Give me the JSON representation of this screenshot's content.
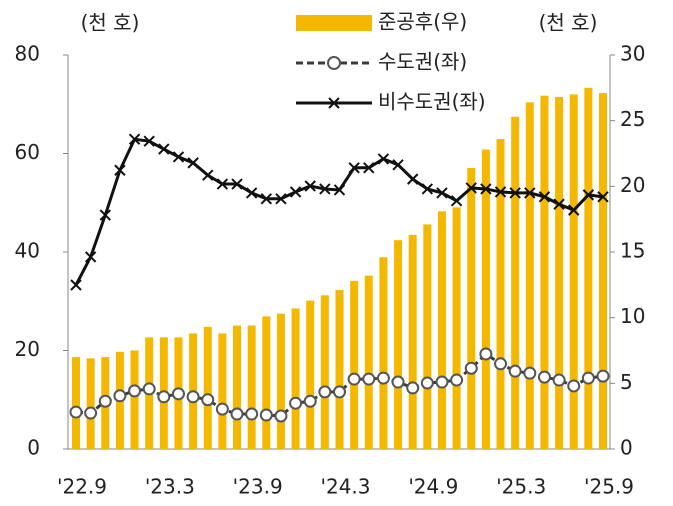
{
  "chart_data": {
    "type": "bar-line",
    "left_unit": "(천 호)",
    "right_unit": "(천 호)",
    "categories": [
      "'22.9",
      null,
      null,
      null,
      null,
      null,
      "'23.3",
      null,
      null,
      null,
      null,
      null,
      "'23.9",
      null,
      null,
      null,
      null,
      null,
      "'24.3",
      null,
      null,
      null,
      null,
      null,
      "'24.9",
      null,
      null,
      null,
      null,
      null,
      "'25.3",
      null,
      null,
      null,
      null,
      null,
      "'25.9"
    ],
    "series": [
      {
        "name": "준공후(우)",
        "color": "#f5b800",
        "axis": "y2",
        "kind": "bar",
        "values": [
          7.0,
          6.9,
          7.0,
          7.4,
          7.5,
          8.5,
          8.5,
          8.5,
          8.8,
          9.3,
          8.8,
          9.4,
          9.4,
          10.1,
          10.3,
          10.7,
          11.3,
          11.7,
          12.1,
          12.8,
          13.2,
          14.6,
          15.9,
          16.3,
          17.1,
          18.1,
          18.4,
          21.4,
          22.8,
          23.6,
          25.3,
          26.4,
          26.9,
          26.8,
          27.0,
          27.5,
          27.1
        ]
      },
      {
        "name": "수도권(좌)",
        "color": "#3a3a3a",
        "axis": "y",
        "kind": "line-circle",
        "values": [
          7.5,
          7.3,
          9.7,
          10.8,
          11.8,
          12.2,
          10.6,
          11.2,
          10.6,
          10.0,
          8.1,
          7.1,
          7.1,
          6.9,
          6.7,
          9.3,
          9.7,
          11.6,
          11.6,
          14.2,
          14.2,
          14.4,
          13.6,
          12.4,
          13.4,
          13.6,
          14.0,
          16.4,
          19.3,
          17.3,
          15.8,
          15.4,
          14.6,
          14.0,
          12.8,
          14.4,
          14.8
        ]
      },
      {
        "name": "비수도권(좌)",
        "color": "#111111",
        "axis": "y",
        "kind": "line-x",
        "values": [
          33.3,
          39.0,
          47.5,
          56.6,
          62.9,
          62.5,
          60.9,
          59.3,
          58.1,
          55.6,
          53.8,
          53.8,
          52.0,
          50.8,
          50.8,
          52.2,
          53.4,
          52.8,
          52.6,
          57.1,
          57.1,
          58.9,
          57.7,
          54.8,
          52.8,
          52.0,
          50.4,
          53.0,
          52.8,
          52.2,
          52.0,
          52.0,
          51.2,
          49.7,
          48.5,
          51.6,
          51.2
        ]
      }
    ],
    "ylim": [
      0,
      80
    ],
    "yticks": [
      0,
      20,
      40,
      60,
      80
    ],
    "y2lim": [
      0,
      30
    ],
    "y2ticks": [
      0,
      5,
      10,
      15,
      20,
      25,
      30
    ]
  }
}
